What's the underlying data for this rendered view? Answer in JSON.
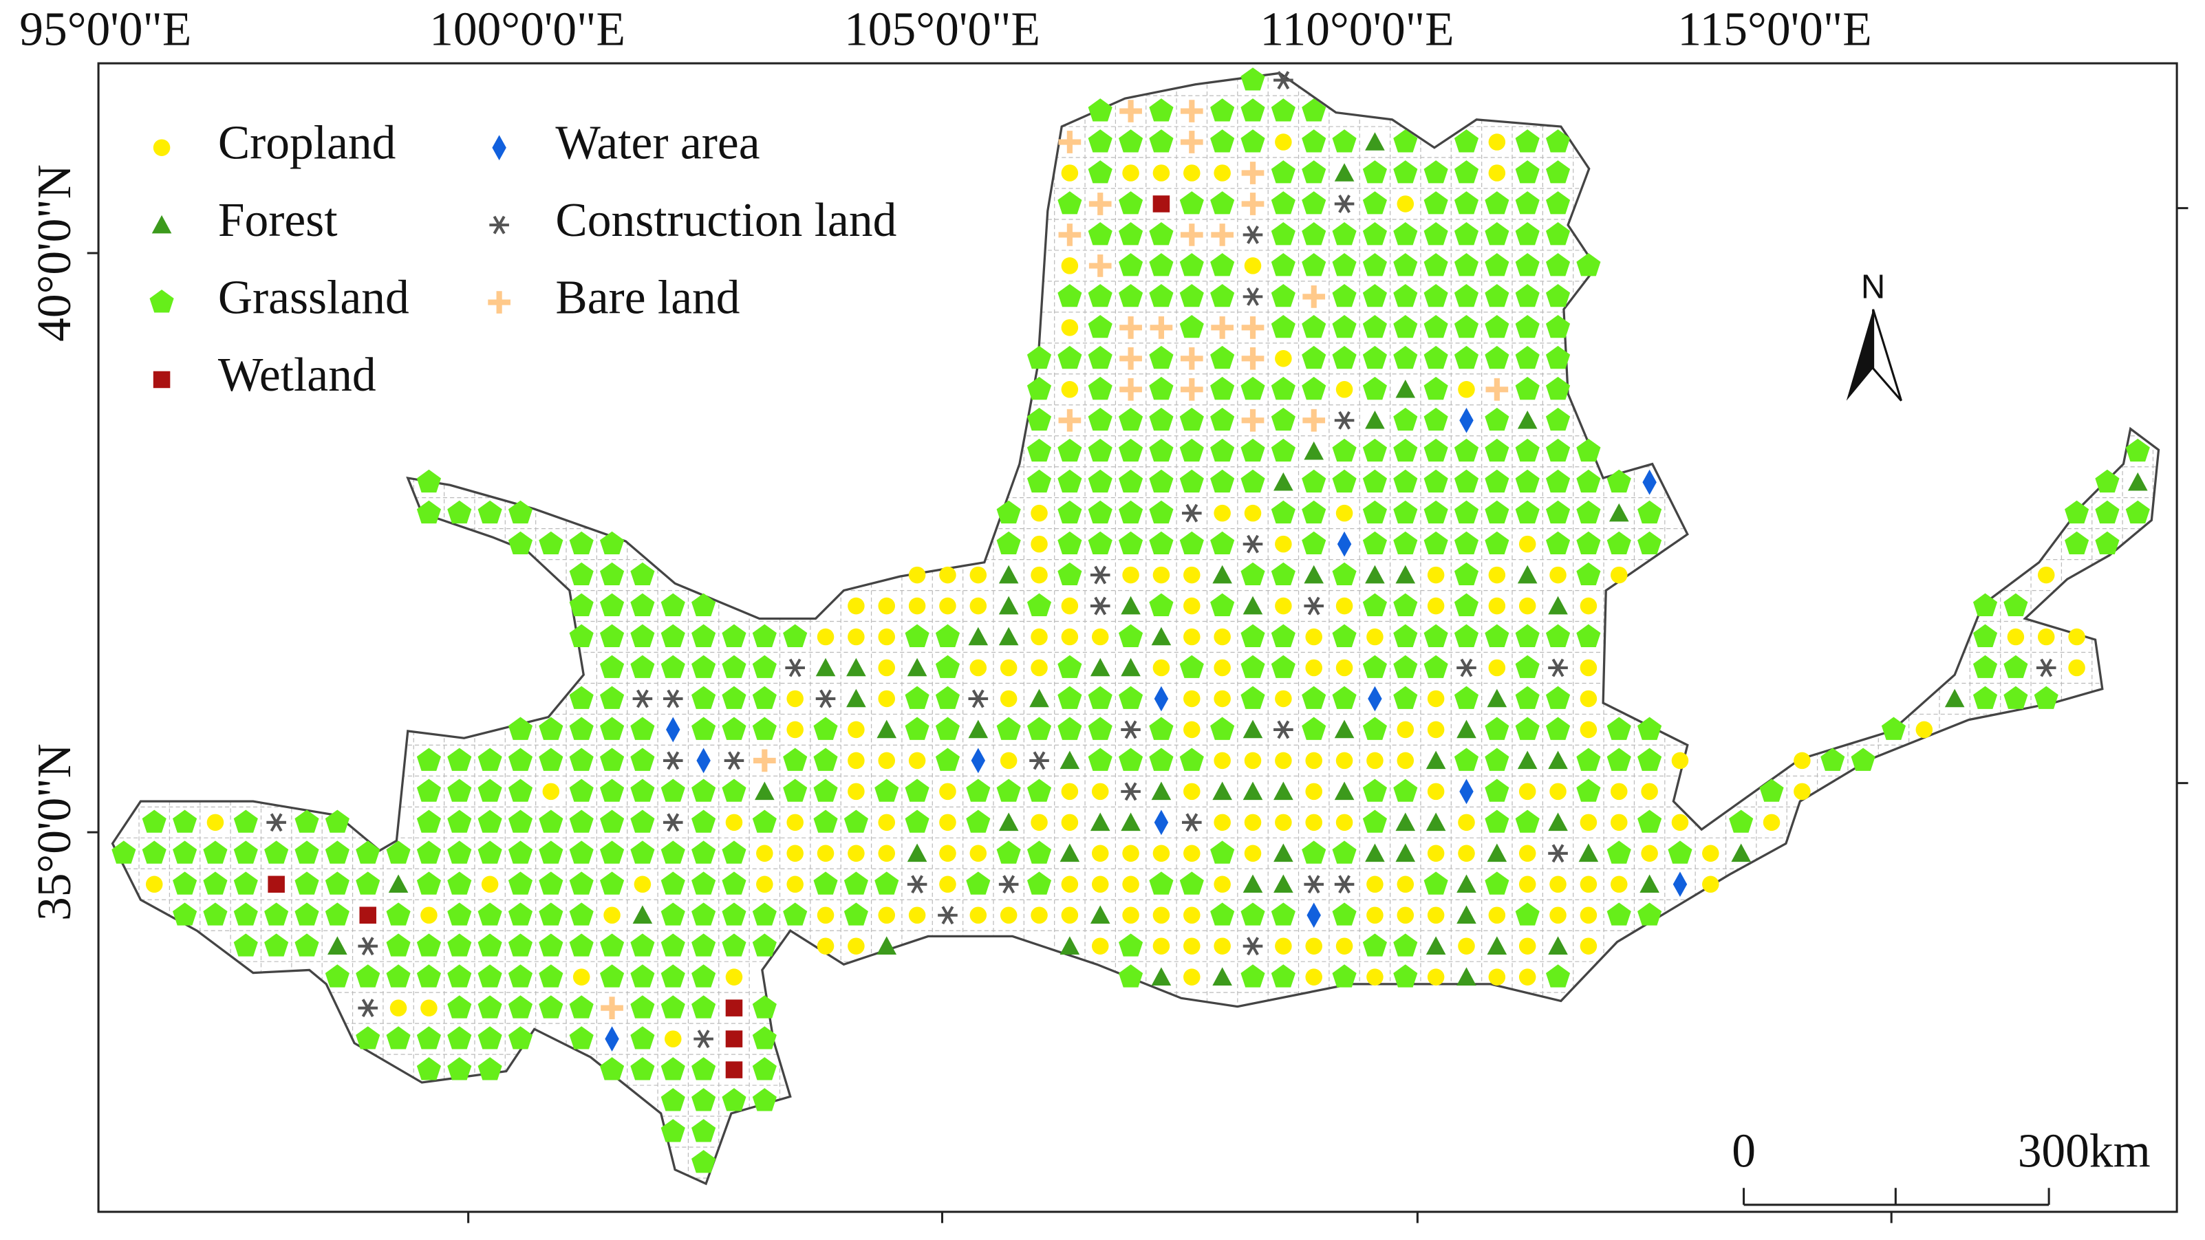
{
  "map": {
    "lon_labels": [
      "95°0'0\"E",
      "100°0'0\"E",
      "105°0'0\"E",
      "110°0'0\"E",
      "115°0'0\"E"
    ],
    "lat_labels": [
      "40°0'0\"N",
      "35°0'0\"N"
    ],
    "legend": [
      "Cropland",
      "Forest",
      "Grassland",
      "Wetland",
      "Water area",
      "Construction land",
      "Bare land"
    ],
    "north": "N",
    "scale": {
      "start": "0",
      "end": "300km"
    }
  }
}
